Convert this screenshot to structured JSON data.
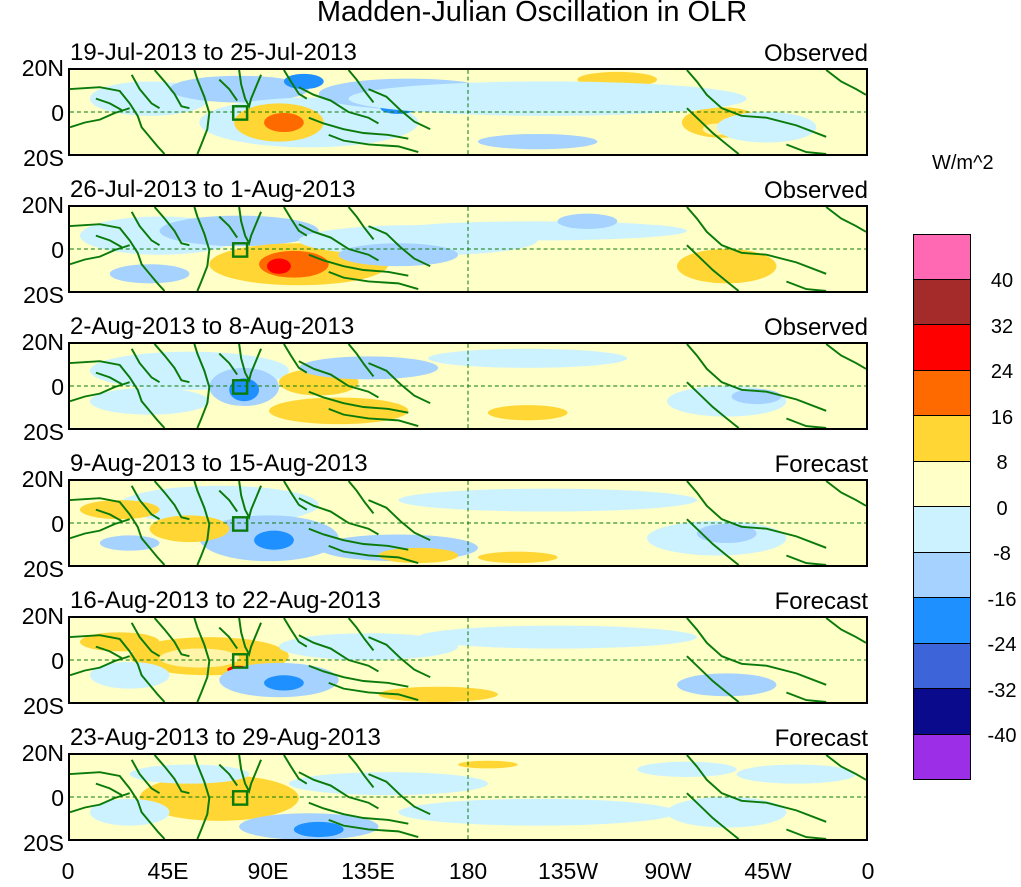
{
  "title": "Madden-Julian Oscillation in OLR",
  "units": "W/m^2",
  "lat_labels": [
    "20N",
    "0",
    "20S"
  ],
  "lon_labels": [
    "0",
    "45E",
    "90E",
    "135E",
    "180",
    "135W",
    "90W",
    "45W",
    "0"
  ],
  "panels": [
    {
      "period": "19-Jul-2013 to 25-Jul-2013",
      "kind": "Observed"
    },
    {
      "period": "26-Jul-2013 to 1-Aug-2013",
      "kind": "Observed"
    },
    {
      "period": "2-Aug-2013 to 8-Aug-2013",
      "kind": "Observed"
    },
    {
      "period": "9-Aug-2013 to 15-Aug-2013",
      "kind": "Forecast"
    },
    {
      "period": "16-Aug-2013 to 22-Aug-2013",
      "kind": "Forecast"
    },
    {
      "period": "23-Aug-2013 to 29-Aug-2013",
      "kind": "Forecast"
    }
  ],
  "legend": {
    "ticks": [
      "40",
      "32",
      "24",
      "16",
      "8",
      "0",
      "-8",
      "-16",
      "-24",
      "-32",
      "-40"
    ],
    "colors": [
      "#ff69b4",
      "#a52a2a",
      "#ff0000",
      "#ff6a00",
      "#ffd633",
      "#ffffc8",
      "#ccf2ff",
      "#a6d2ff",
      "#1e90ff",
      "#3d64d9",
      "#0a0a8c",
      "#9b2ee6"
    ]
  }
}
